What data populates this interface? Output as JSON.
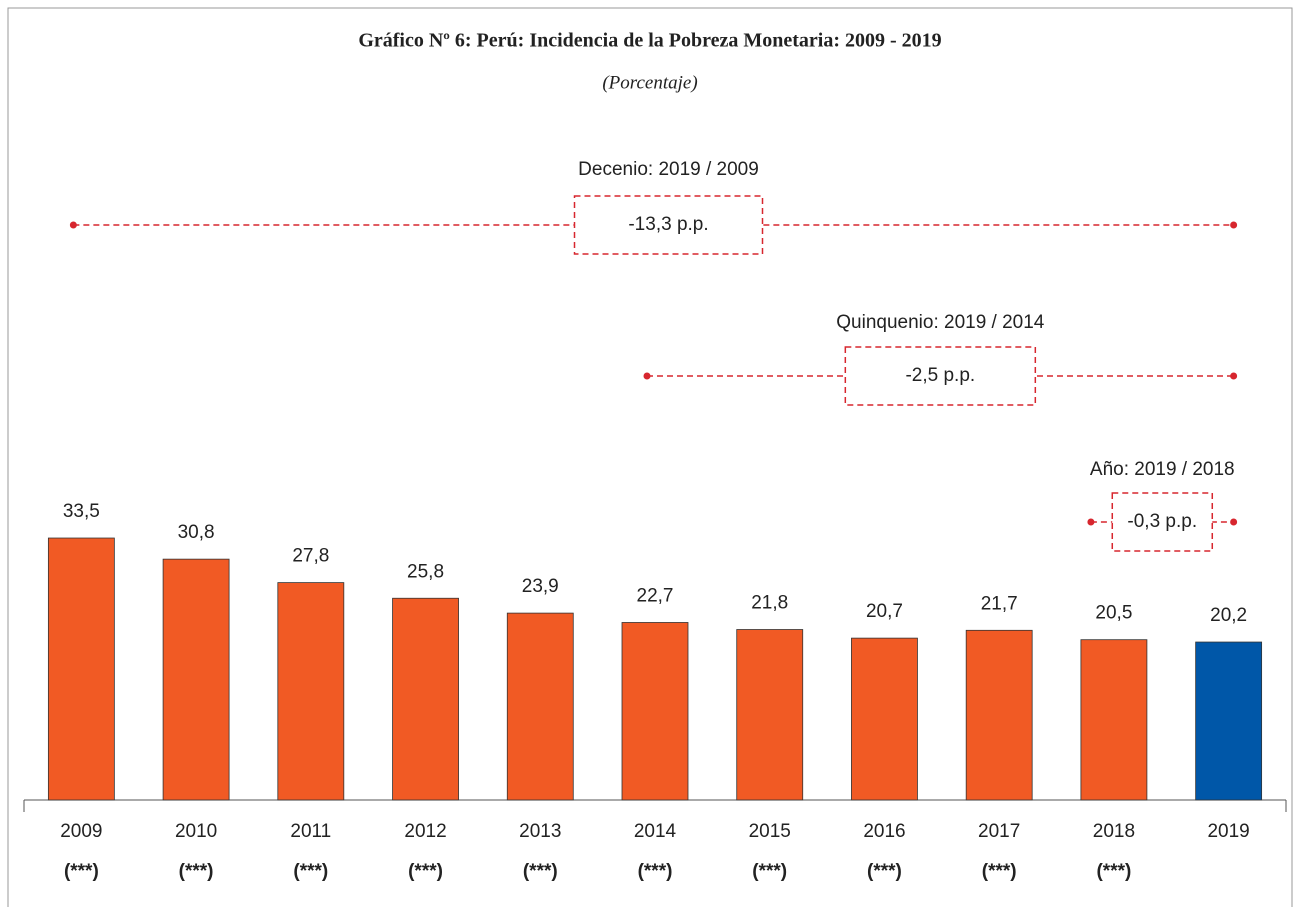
{
  "chart_data": {
    "type": "bar",
    "title": "Gráfico Nº 6: Perú: Incidencia de la Pobreza Monetaria: 2009 - 2019",
    "subtitle": "(Porcentaje)",
    "categories": [
      "2009",
      "2010",
      "2011",
      "2012",
      "2013",
      "2014",
      "2015",
      "2016",
      "2017",
      "2018",
      "2019"
    ],
    "notes": [
      "(***)",
      "(***)",
      "(***)",
      "(***)",
      "(***)",
      "(***)",
      "(***)",
      "(***)",
      "(***)",
      "(***)",
      null
    ],
    "values": [
      33.5,
      30.8,
      27.8,
      25.8,
      23.9,
      22.7,
      21.8,
      20.7,
      21.7,
      20.5,
      20.2
    ],
    "value_labels": [
      "33,5",
      "30,8",
      "27,8",
      "25,8",
      "23,9",
      "22,7",
      "21,8",
      "20,7",
      "21,7",
      "20,5",
      "20,2"
    ],
    "colors": [
      "#f15a24",
      "#f15a24",
      "#f15a24",
      "#f15a24",
      "#f15a24",
      "#f15a24",
      "#f15a24",
      "#f15a24",
      "#f15a24",
      "#f15a24",
      "#0057a8"
    ],
    "comparisons": [
      {
        "title": "Decenio: 2019 / 2009",
        "from": "2009",
        "to": "2019",
        "value": -13.3,
        "value_label": "-13,3 p.p."
      },
      {
        "title": "Quinquenio: 2019 / 2014",
        "from": "2014",
        "to": "2019",
        "value": -2.5,
        "value_label": "-2,5 p.p."
      },
      {
        "title": "Año: 2019 / 2018",
        "from": "2018",
        "to": "2019",
        "value": -0.3,
        "value_label": "-0,3 p.p."
      }
    ]
  }
}
